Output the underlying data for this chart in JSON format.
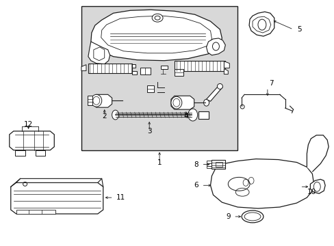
{
  "bg_color": "#ffffff",
  "fig_width": 4.89,
  "fig_height": 3.6,
  "dpi": 100,
  "box_bg": "#d8d8d8",
  "line_color": "#1a1a1a",
  "label_fs": 7.5
}
